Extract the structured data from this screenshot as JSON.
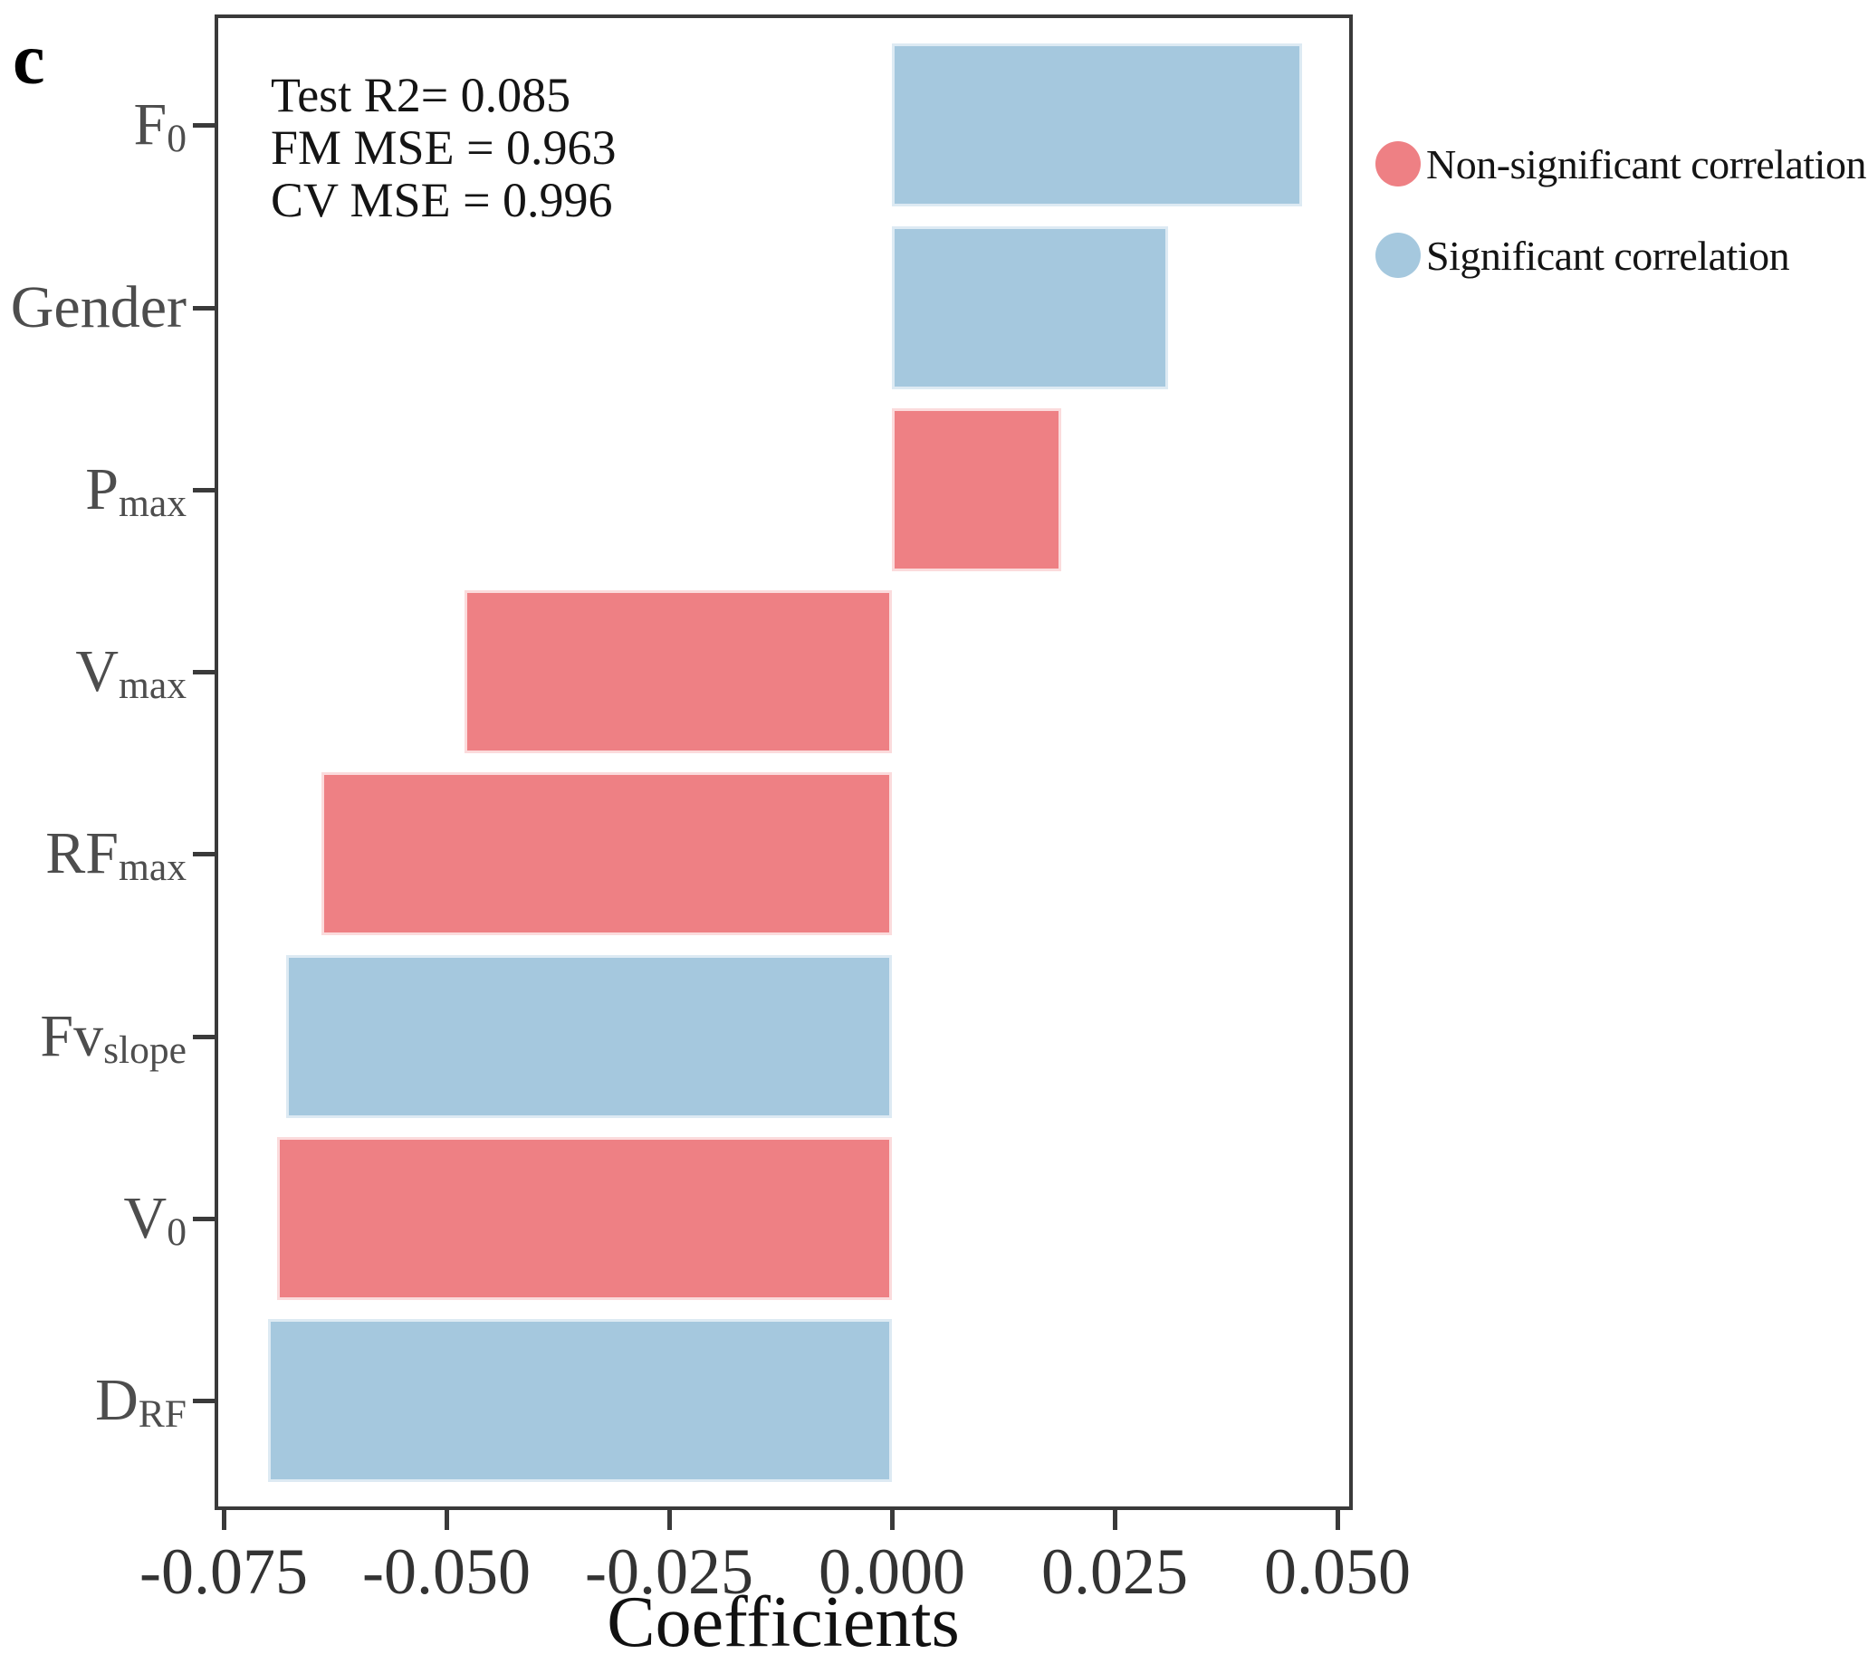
{
  "panel_label": "c",
  "chart_data": {
    "type": "bar",
    "orientation": "horizontal",
    "title": "",
    "xlabel": "Coefficients",
    "ylabel": "",
    "categories": [
      "F0",
      "Gender",
      "Pmax",
      "Vmax",
      "RFmax",
      "Fvslope",
      "V0",
      "DRF"
    ],
    "categories_rich": [
      {
        "base": "F",
        "sub": "0"
      },
      {
        "base": "Gender",
        "sub": ""
      },
      {
        "base": "P",
        "sub": "max"
      },
      {
        "base": "V",
        "sub": "max"
      },
      {
        "base": "RF",
        "sub": "max"
      },
      {
        "base": "Fv",
        "sub": "slope"
      },
      {
        "base": "V",
        "sub": "0"
      },
      {
        "base": "D",
        "sub": "RF"
      }
    ],
    "values": [
      0.046,
      0.031,
      0.019,
      -0.048,
      -0.064,
      -0.068,
      -0.069,
      -0.07
    ],
    "significant": [
      true,
      true,
      false,
      false,
      false,
      true,
      false,
      true
    ],
    "xlim": [
      -0.0758,
      0.0515
    ],
    "xticks": [
      -0.075,
      -0.05,
      -0.025,
      0,
      0.025,
      0.05
    ],
    "xtick_labels": [
      "-0.075",
      "-0.050",
      "-0.025",
      "0.000",
      "0.025",
      "0.050"
    ],
    "grid": false,
    "annotation_lines": [
      "Test R2= 0.085",
      "FM MSE = 0.963",
      "CV MSE = 0.996"
    ],
    "legend": [
      {
        "label": "Non-significant correlation",
        "significant": false
      },
      {
        "label": "Significant correlation",
        "significant": true
      }
    ],
    "legend_position": "right-outside-top",
    "colors": {
      "significant_fill": "#a5c8de",
      "significant_edge": "#ddeaf3",
      "non_significant_fill": "#ee8084",
      "non_significant_edge": "#fbdbdc",
      "axis": "#3a3a3a",
      "ytick_text": "#4d4d4d",
      "xtick_text": "#333333",
      "text": "#141414"
    }
  }
}
